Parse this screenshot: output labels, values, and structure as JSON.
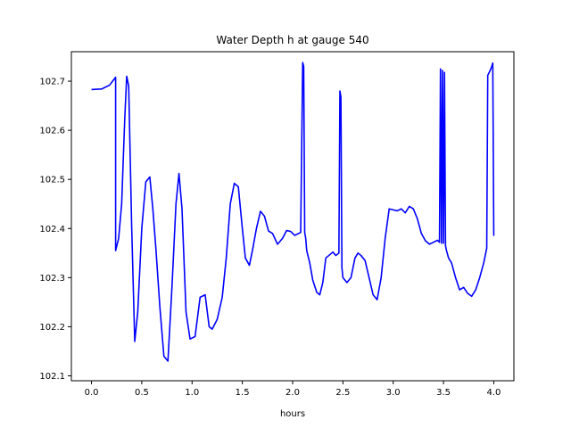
{
  "chart_data": {
    "type": "line",
    "title": "Water Depth h at gauge 540",
    "xlabel": "hours",
    "ylabel": "",
    "xlim": [
      -0.2,
      4.2
    ],
    "ylim": [
      102.09,
      102.76
    ],
    "xticks": [
      0.0,
      0.5,
      1.0,
      1.5,
      2.0,
      2.5,
      3.0,
      3.5,
      4.0
    ],
    "xtick_labels": [
      "0.0",
      "0.5",
      "1.0",
      "1.5",
      "2.0",
      "2.5",
      "3.0",
      "3.5",
      "4.0"
    ],
    "yticks": [
      102.1,
      102.2,
      102.3,
      102.4,
      102.5,
      102.6,
      102.7
    ],
    "ytick_labels": [
      "102.1",
      "102.2",
      "102.3",
      "102.4",
      "102.5",
      "102.6",
      "102.7"
    ],
    "grid": false,
    "colors": {
      "line": "#0000ff",
      "axes": "#000000"
    },
    "series": [
      {
        "x": [
          0.0,
          0.1,
          0.18,
          0.24,
          0.24,
          0.27,
          0.3,
          0.33,
          0.35,
          0.37,
          0.4,
          0.43,
          0.46,
          0.5,
          0.54,
          0.58,
          0.61,
          0.64,
          0.68,
          0.72,
          0.76,
          0.8,
          0.84,
          0.87,
          0.9,
          0.94,
          0.98,
          1.03,
          1.08,
          1.13,
          1.17,
          1.2,
          1.25,
          1.3,
          1.34,
          1.38,
          1.42,
          1.46,
          1.5,
          1.53,
          1.57,
          1.6,
          1.64,
          1.68,
          1.72,
          1.76,
          1.8,
          1.85,
          1.9,
          1.94,
          1.98,
          2.02,
          2.08,
          2.1,
          2.11,
          2.12,
          2.13,
          2.14,
          2.17,
          2.2,
          2.24,
          2.27,
          2.3,
          2.33,
          2.36,
          2.4,
          2.43,
          2.46,
          2.47,
          2.48,
          2.49,
          2.5,
          2.54,
          2.58,
          2.62,
          2.65,
          2.68,
          2.72,
          2.76,
          2.8,
          2.84,
          2.88,
          2.92,
          2.96,
          3.0,
          3.04,
          3.08,
          3.12,
          3.16,
          3.2,
          3.24,
          3.28,
          3.32,
          3.36,
          3.4,
          3.44,
          3.46,
          3.47,
          3.48,
          3.49,
          3.5,
          3.51,
          3.52,
          3.53,
          3.55,
          3.58,
          3.62,
          3.66,
          3.7,
          3.74,
          3.78,
          3.82,
          3.86,
          3.9,
          3.93,
          3.94,
          3.96,
          3.98,
          3.99,
          4.0
        ],
        "y": [
          102.683,
          102.684,
          102.692,
          102.708,
          102.355,
          102.38,
          102.45,
          102.62,
          102.71,
          102.69,
          102.4,
          102.17,
          102.23,
          102.4,
          102.495,
          102.505,
          102.44,
          102.36,
          102.24,
          102.14,
          102.13,
          102.28,
          102.45,
          102.512,
          102.44,
          102.23,
          102.175,
          102.18,
          102.26,
          102.265,
          102.2,
          102.195,
          102.215,
          102.26,
          102.34,
          102.45,
          102.492,
          102.485,
          102.4,
          102.34,
          102.325,
          102.355,
          102.4,
          102.435,
          102.425,
          102.395,
          102.39,
          102.368,
          102.38,
          102.396,
          102.394,
          102.386,
          102.392,
          102.738,
          102.73,
          102.392,
          102.38,
          102.355,
          102.33,
          102.295,
          102.27,
          102.265,
          102.29,
          102.34,
          102.345,
          102.352,
          102.345,
          102.35,
          102.68,
          102.668,
          102.32,
          102.3,
          102.29,
          102.3,
          102.34,
          102.35,
          102.345,
          102.335,
          102.3,
          102.265,
          102.255,
          102.3,
          102.38,
          102.44,
          102.438,
          102.436,
          102.44,
          102.432,
          102.445,
          102.44,
          102.42,
          102.39,
          102.375,
          102.368,
          102.372,
          102.376,
          102.372,
          102.725,
          102.37,
          102.722,
          102.37,
          102.718,
          102.365,
          102.355,
          102.34,
          102.33,
          102.3,
          102.275,
          102.28,
          102.268,
          102.262,
          102.275,
          102.3,
          102.33,
          102.36,
          102.712,
          102.72,
          102.73,
          102.737,
          102.385
        ]
      }
    ]
  }
}
